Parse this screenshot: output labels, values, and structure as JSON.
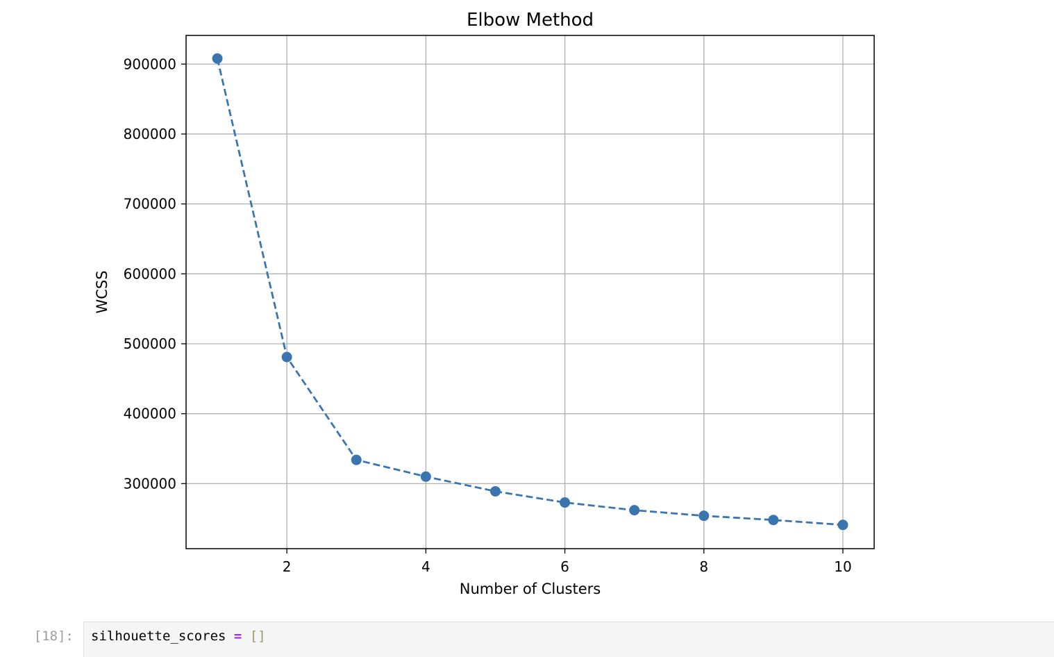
{
  "chart_data": {
    "type": "line",
    "title": "Elbow Method",
    "xlabel": "Number of Clusters",
    "ylabel": "WCSS",
    "x": [
      1,
      2,
      3,
      4,
      5,
      6,
      7,
      8,
      9,
      10
    ],
    "series": [
      {
        "values": [
          908000,
          481000,
          334000,
          310000,
          289000,
          273000,
          262000,
          254000,
          248000,
          241000
        ],
        "color": "#3a75b0",
        "line_style": "dashed",
        "marker": "circle"
      }
    ],
    "xlim": [
      0.55,
      10.45
    ],
    "ylim": [
      207000,
      941000
    ],
    "xticks": [
      2,
      4,
      6,
      8,
      10
    ],
    "yticks": [
      300000,
      400000,
      500000,
      600000,
      700000,
      800000,
      900000
    ],
    "grid": true,
    "legend": "none"
  },
  "cell": {
    "prompt": "[18]:",
    "code": {
      "var": "silhouette_scores",
      "op": "=",
      "value": "[]"
    }
  }
}
